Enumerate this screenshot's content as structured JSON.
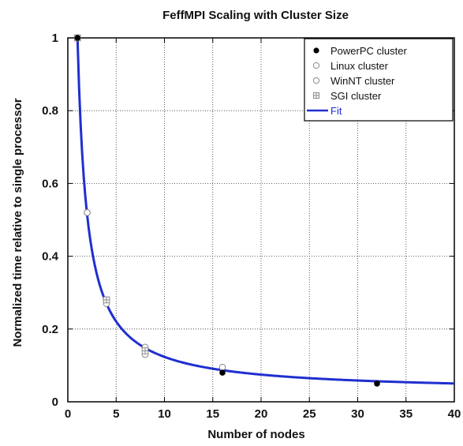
{
  "chart_data": {
    "type": "scatter",
    "title": "FeffMPI Scaling with Cluster Size",
    "xlabel": "Number of nodes",
    "ylabel": "Normalized time relative to single processor",
    "xlim": [
      0,
      40
    ],
    "ylim": [
      0,
      1
    ],
    "x_ticks": [
      0,
      5,
      10,
      15,
      20,
      25,
      30,
      35,
      40
    ],
    "y_ticks": [
      0,
      0.2,
      0.4,
      0.6,
      0.8,
      1
    ],
    "y_tick_labels": [
      "0",
      "0.2",
      "0.4",
      "0.6",
      "0.8",
      "1"
    ],
    "grid": "dotted",
    "legend_position": "top-right",
    "series": [
      {
        "name": "PowerPC cluster",
        "marker": "filled-circle",
        "color": "#000000",
        "points": [
          [
            1,
            1.0
          ],
          [
            16,
            0.08
          ],
          [
            32,
            0.05
          ]
        ]
      },
      {
        "name": "Linux cluster",
        "marker": "open-circle",
        "color": "#888888",
        "points": [
          [
            1,
            1.0
          ],
          [
            2,
            0.52
          ],
          [
            4,
            0.28
          ],
          [
            8,
            0.15
          ],
          [
            16,
            0.095
          ]
        ]
      },
      {
        "name": "WinNT cluster",
        "marker": "open-circle",
        "color": "#888888",
        "points": [
          [
            1,
            1.0
          ],
          [
            2,
            0.52
          ],
          [
            4,
            0.27
          ],
          [
            8,
            0.13
          ]
        ]
      },
      {
        "name": "SGI cluster",
        "marker": "grid-square",
        "color": "#888888",
        "points": [
          [
            1,
            1.0
          ],
          [
            4,
            0.28
          ],
          [
            8,
            0.14
          ]
        ]
      }
    ],
    "fit": {
      "name": "Fit",
      "color": "#1f2fd0",
      "formula": "0.026 + 0.974 / x",
      "x_range": [
        1,
        40
      ]
    }
  }
}
